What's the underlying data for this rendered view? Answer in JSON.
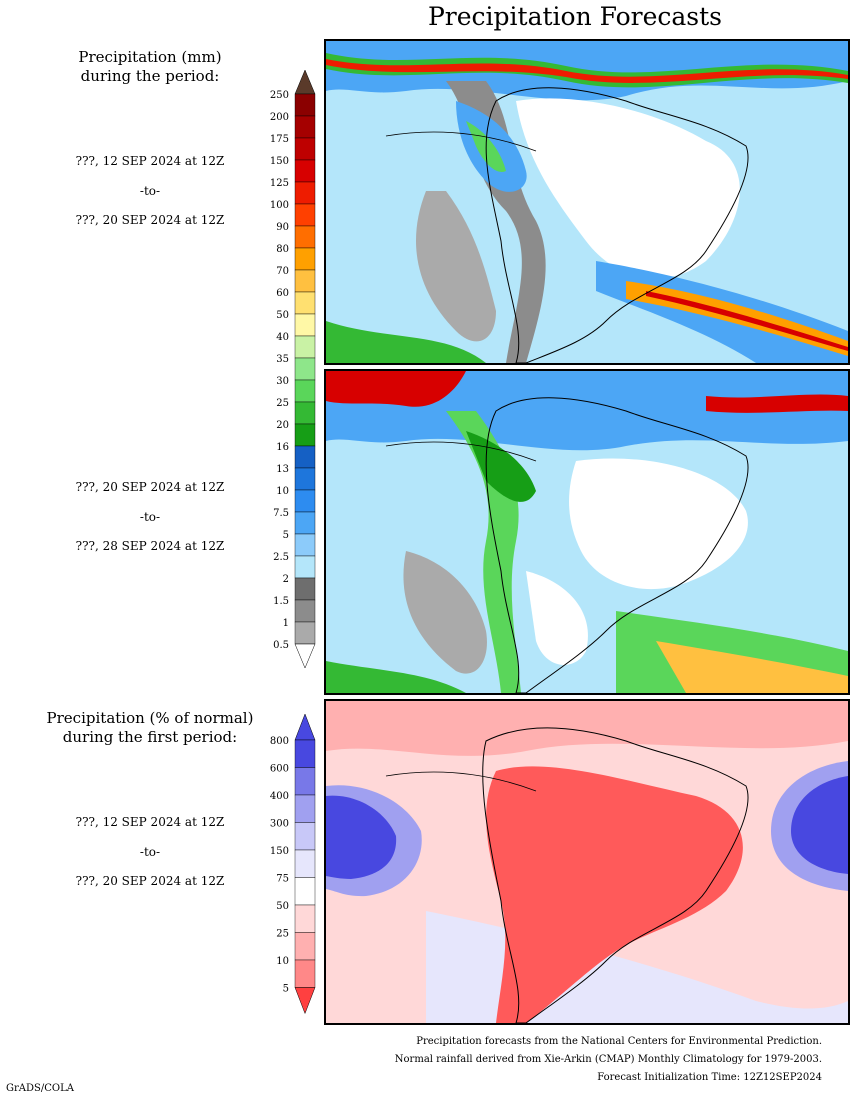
{
  "title": "Precipitation Forecasts",
  "legend_mm": {
    "title_line1": "Precipitation (mm)",
    "title_line2": "during the period:",
    "levels": [
      "250",
      "200",
      "175",
      "150",
      "125",
      "100",
      "90",
      "80",
      "70",
      "60",
      "50",
      "40",
      "35",
      "30",
      "25",
      "20",
      "16",
      "13",
      "10",
      "7.5",
      "5",
      "2.5",
      "2",
      "1.5",
      "1",
      "0.5"
    ],
    "colors": [
      "#8b0000",
      "#a50000",
      "#be0000",
      "#d70000",
      "#ee1c00",
      "#ff4000",
      "#ff6e00",
      "#ffa000",
      "#ffc040",
      "#ffe070",
      "#fff8a6",
      "#c9f2a5",
      "#8ee68a",
      "#5ad65a",
      "#34b934",
      "#169e16",
      "#1560c4",
      "#1e76dc",
      "#2d8cf0",
      "#4ca6f5",
      "#8ccbfa",
      "#b4e6fa",
      "#6e6e6e",
      "#8c8c8c",
      "#aaaaaa",
      "#c8c8c8"
    ]
  },
  "period_1": {
    "start": "???, 12 SEP 2024 at 12Z",
    "sep": "-to-",
    "end": "???, 20 SEP 2024 at 12Z"
  },
  "period_2": {
    "start": "???, 20 SEP 2024 at 12Z",
    "sep": "-to-",
    "end": "???, 28 SEP 2024 at 12Z"
  },
  "legend_pct": {
    "title_line1": "Precipitation (% of normal)",
    "title_line2": "during the first period:",
    "levels": [
      "800",
      "600",
      "400",
      "300",
      "150",
      "75",
      "50",
      "25",
      "10",
      "5"
    ],
    "colors": [
      "#4848e0",
      "#7878e8",
      "#a0a0f0",
      "#c8c8f8",
      "#e6e6fc",
      "#ffffff",
      "#ffd8d8",
      "#ffb0b0",
      "#ff8888",
      "#ff5a5a"
    ]
  },
  "period_3": {
    "start": "???, 12 SEP 2024 at 12Z",
    "sep": "-to-",
    "end": "???, 20 SEP 2024 at 12Z"
  },
  "credits": {
    "line1": "Precipitation forecasts from the National Centers for Environmental Prediction.",
    "line2": "Normal rainfall derived from Xie-Arkin (CMAP) Monthly Climatology for 1979-2003.",
    "line3": "Forecast Initialization Time: 12Z12SEP2024"
  },
  "footer": "GrADS/COLA",
  "colors": {
    "ocean_light": "#b4e6fa",
    "ocean_blue": "#4ca6f5",
    "land_dry": "#ffffff",
    "pct_dry": "#ff5a5a",
    "pct_wet": "#4848e0"
  }
}
